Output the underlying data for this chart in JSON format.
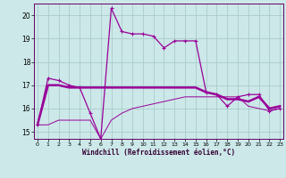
{
  "xlabel": "Windchill (Refroidissement éolien,°C)",
  "background_color": "#cce8e8",
  "grid_color": "#aacccc",
  "line_color": "#990099",
  "x_hours": [
    0,
    1,
    2,
    3,
    4,
    5,
    6,
    7,
    8,
    9,
    10,
    11,
    12,
    13,
    14,
    15,
    16,
    17,
    18,
    19,
    20,
    21,
    22,
    23
  ],
  "series1": [
    15.3,
    17.3,
    17.2,
    17.0,
    16.9,
    15.8,
    14.7,
    20.3,
    19.3,
    19.2,
    19.2,
    19.1,
    18.6,
    18.9,
    18.9,
    18.9,
    16.7,
    16.6,
    16.1,
    16.5,
    16.6,
    16.6,
    15.9,
    16.0
  ],
  "series2": [
    15.3,
    17.0,
    17.0,
    16.9,
    16.9,
    16.9,
    16.9,
    16.9,
    16.9,
    16.9,
    16.9,
    16.9,
    16.9,
    16.9,
    16.9,
    16.9,
    16.7,
    16.6,
    16.4,
    16.4,
    16.3,
    16.5,
    16.0,
    16.1
  ],
  "series3": [
    15.3,
    15.3,
    15.5,
    15.5,
    15.5,
    15.5,
    14.7,
    15.5,
    15.8,
    16.0,
    16.1,
    16.2,
    16.3,
    16.4,
    16.5,
    16.5,
    16.5,
    16.5,
    16.5,
    16.5,
    16.1,
    16.0,
    15.9,
    16.0
  ],
  "ylim": [
    14.7,
    20.5
  ],
  "yticks": [
    15,
    16,
    17,
    18,
    19,
    20
  ],
  "xticks": [
    0,
    1,
    2,
    3,
    4,
    5,
    6,
    7,
    8,
    9,
    10,
    11,
    12,
    13,
    14,
    15,
    16,
    17,
    18,
    19,
    20,
    21,
    22,
    23
  ]
}
